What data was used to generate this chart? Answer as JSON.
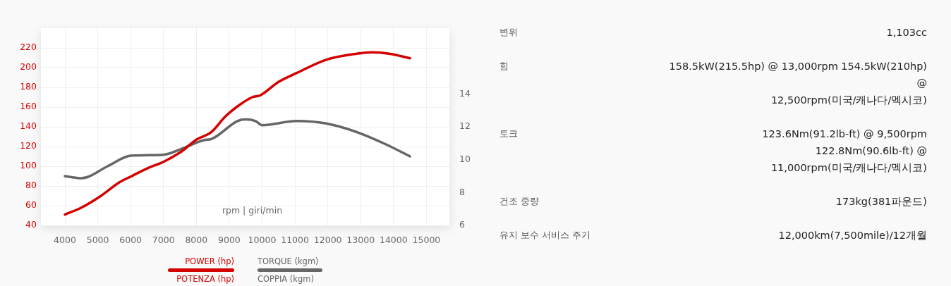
{
  "chart_data": [
    {
      "type": "line",
      "xlabel": "rpm | giri/min",
      "xlim": [
        3270,
        15700
      ],
      "xticks": [
        4000,
        5000,
        6000,
        7000,
        8000,
        9000,
        10000,
        11000,
        12000,
        13000,
        14000,
        15000
      ],
      "ylim": [
        40,
        240
      ],
      "yticks": [
        40,
        60,
        80,
        100,
        120,
        140,
        160,
        180,
        200,
        220
      ],
      "y2lim": [
        6,
        18
      ],
      "y2ticks": [
        6,
        8,
        10,
        12,
        14
      ],
      "grid": true,
      "legend": "bottom",
      "marker": "none",
      "line_style": "solid",
      "series": [
        {
          "name": "POWER (hp)\nPOTENZA (hp)",
          "color": "#d40000",
          "x": [
            4000,
            4500,
            5100,
            5650,
            6000,
            6550,
            7000,
            7550,
            8000,
            8450,
            8900,
            9350,
            9700,
            9950,
            10500,
            11050,
            11950,
            12850,
            13350,
            13900,
            14500
          ],
          "values": [
            51,
            58,
            70,
            83.5,
            89.5,
            98.5,
            104.5,
            115,
            127,
            134.5,
            151,
            163,
            170,
            172,
            185.5,
            194.5,
            208,
            214,
            215.5,
            214,
            209.5
          ]
        },
        {
          "name": "TORQUE (kgm)\nCOPPIA (kgm)",
          "color": "#666666",
          "axis": "y2",
          "x": [
            4000,
            4500,
            5300,
            6000,
            7000,
            7600,
            8250,
            8450,
            9250,
            9500,
            9800,
            10000,
            11050,
            11950,
            12850,
            13750,
            14500
          ],
          "values": [
            9.0,
            8.87,
            9.6,
            10.24,
            10.3,
            10.7,
            11.2,
            11.25,
            12.35,
            12.45,
            12.35,
            12.1,
            12.35,
            12.2,
            11.7,
            10.95,
            10.2
          ]
        }
      ]
    },
    {
      "type": "other",
      "categories": [
        "변위",
        "힘",
        "토크",
        "건조 중량",
        "유지 보수 서비스 주기"
      ],
      "annotations": [
        "1,103cc",
        "158.5kW(215.5hp) @ 13,000rpm 154.5kW(210hp)\n@\n12,500rpm(미국/캐나다/멕시코)",
        "123.6Nm(91.2lb-ft) @ 9,500rpm\n122.8Nm(90.6lb-ft) @\n11,000rpm(미국/캐나다/멕시코)",
        "173kg(381파운드)",
        "12,000km(7,500mile)/12개월"
      ]
    }
  ]
}
